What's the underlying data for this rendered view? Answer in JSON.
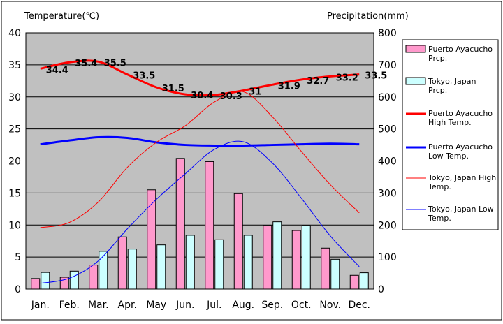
{
  "chart_data": {
    "type": "bar",
    "title": "",
    "categories": [
      "Jan.",
      "Feb.",
      "Mar.",
      "Apr.",
      "May",
      "Jun.",
      "Jul.",
      "Aug.",
      "Sep.",
      "Oct.",
      "Nov.",
      "Dec."
    ],
    "left_axis": {
      "label": "Temperature(℃)",
      "range": [
        0,
        40
      ],
      "ticks": [
        0,
        5,
        10,
        15,
        20,
        25,
        30,
        35,
        40
      ]
    },
    "right_axis": {
      "label": "Precipitation(mm)",
      "range": [
        0,
        800
      ],
      "ticks": [
        0,
        100,
        200,
        300,
        400,
        500,
        600,
        700,
        800
      ]
    },
    "bar_series": [
      {
        "name": "Puerto Ayacucho Prcp.",
        "axis": "right",
        "color": "#ff99cc",
        "values": [
          33,
          37,
          75,
          163,
          310,
          408,
          398,
          298,
          198,
          183,
          128,
          43
        ]
      },
      {
        "name": "Tokyo, Japan Prcp.",
        "axis": "right",
        "color": "#ccffff",
        "values": [
          52,
          56,
          118,
          125,
          138,
          168,
          154,
          168,
          210,
          198,
          93,
          51
        ]
      }
    ],
    "line_series": [
      {
        "name": "Puerto Ayacucho High Temp.",
        "axis": "left",
        "color": "#ff0000",
        "width": "thick",
        "values": [
          34.4,
          35.4,
          35.5,
          33.5,
          31.5,
          30.4,
          30.3,
          31,
          31.9,
          32.7,
          33.2,
          33.5
        ],
        "labels": [
          "34.4",
          "35.4",
          "35.5",
          "33.5",
          "31.5",
          "30.4",
          "30.3",
          "31",
          "31.9",
          "32.7",
          "33.2",
          "33.5"
        ]
      },
      {
        "name": "Puerto Ayacucho Low Temp.",
        "axis": "left",
        "color": "#0000ff",
        "width": "thick",
        "values": [
          22.6,
          23.2,
          23.7,
          23.6,
          22.9,
          22.5,
          22.4,
          22.4,
          22.5,
          22.6,
          22.7,
          22.6
        ]
      },
      {
        "name": "Tokyo, Japan High Temp.",
        "axis": "left",
        "color": "#ff0000",
        "width": "thin",
        "values": [
          9.6,
          10.4,
          13.6,
          19.0,
          22.9,
          25.5,
          29.2,
          30.8,
          26.9,
          21.5,
          16.3,
          11.9
        ]
      },
      {
        "name": "Tokyo, Japan Low Temp.",
        "axis": "left",
        "color": "#0000ff",
        "width": "thin",
        "values": [
          0.9,
          1.7,
          4.4,
          9.4,
          14.0,
          18.0,
          21.8,
          23.0,
          19.7,
          14.2,
          8.3,
          3.5
        ]
      }
    ],
    "plot_background": "#c0c0c0",
    "grid": true,
    "legend_position": "right"
  }
}
